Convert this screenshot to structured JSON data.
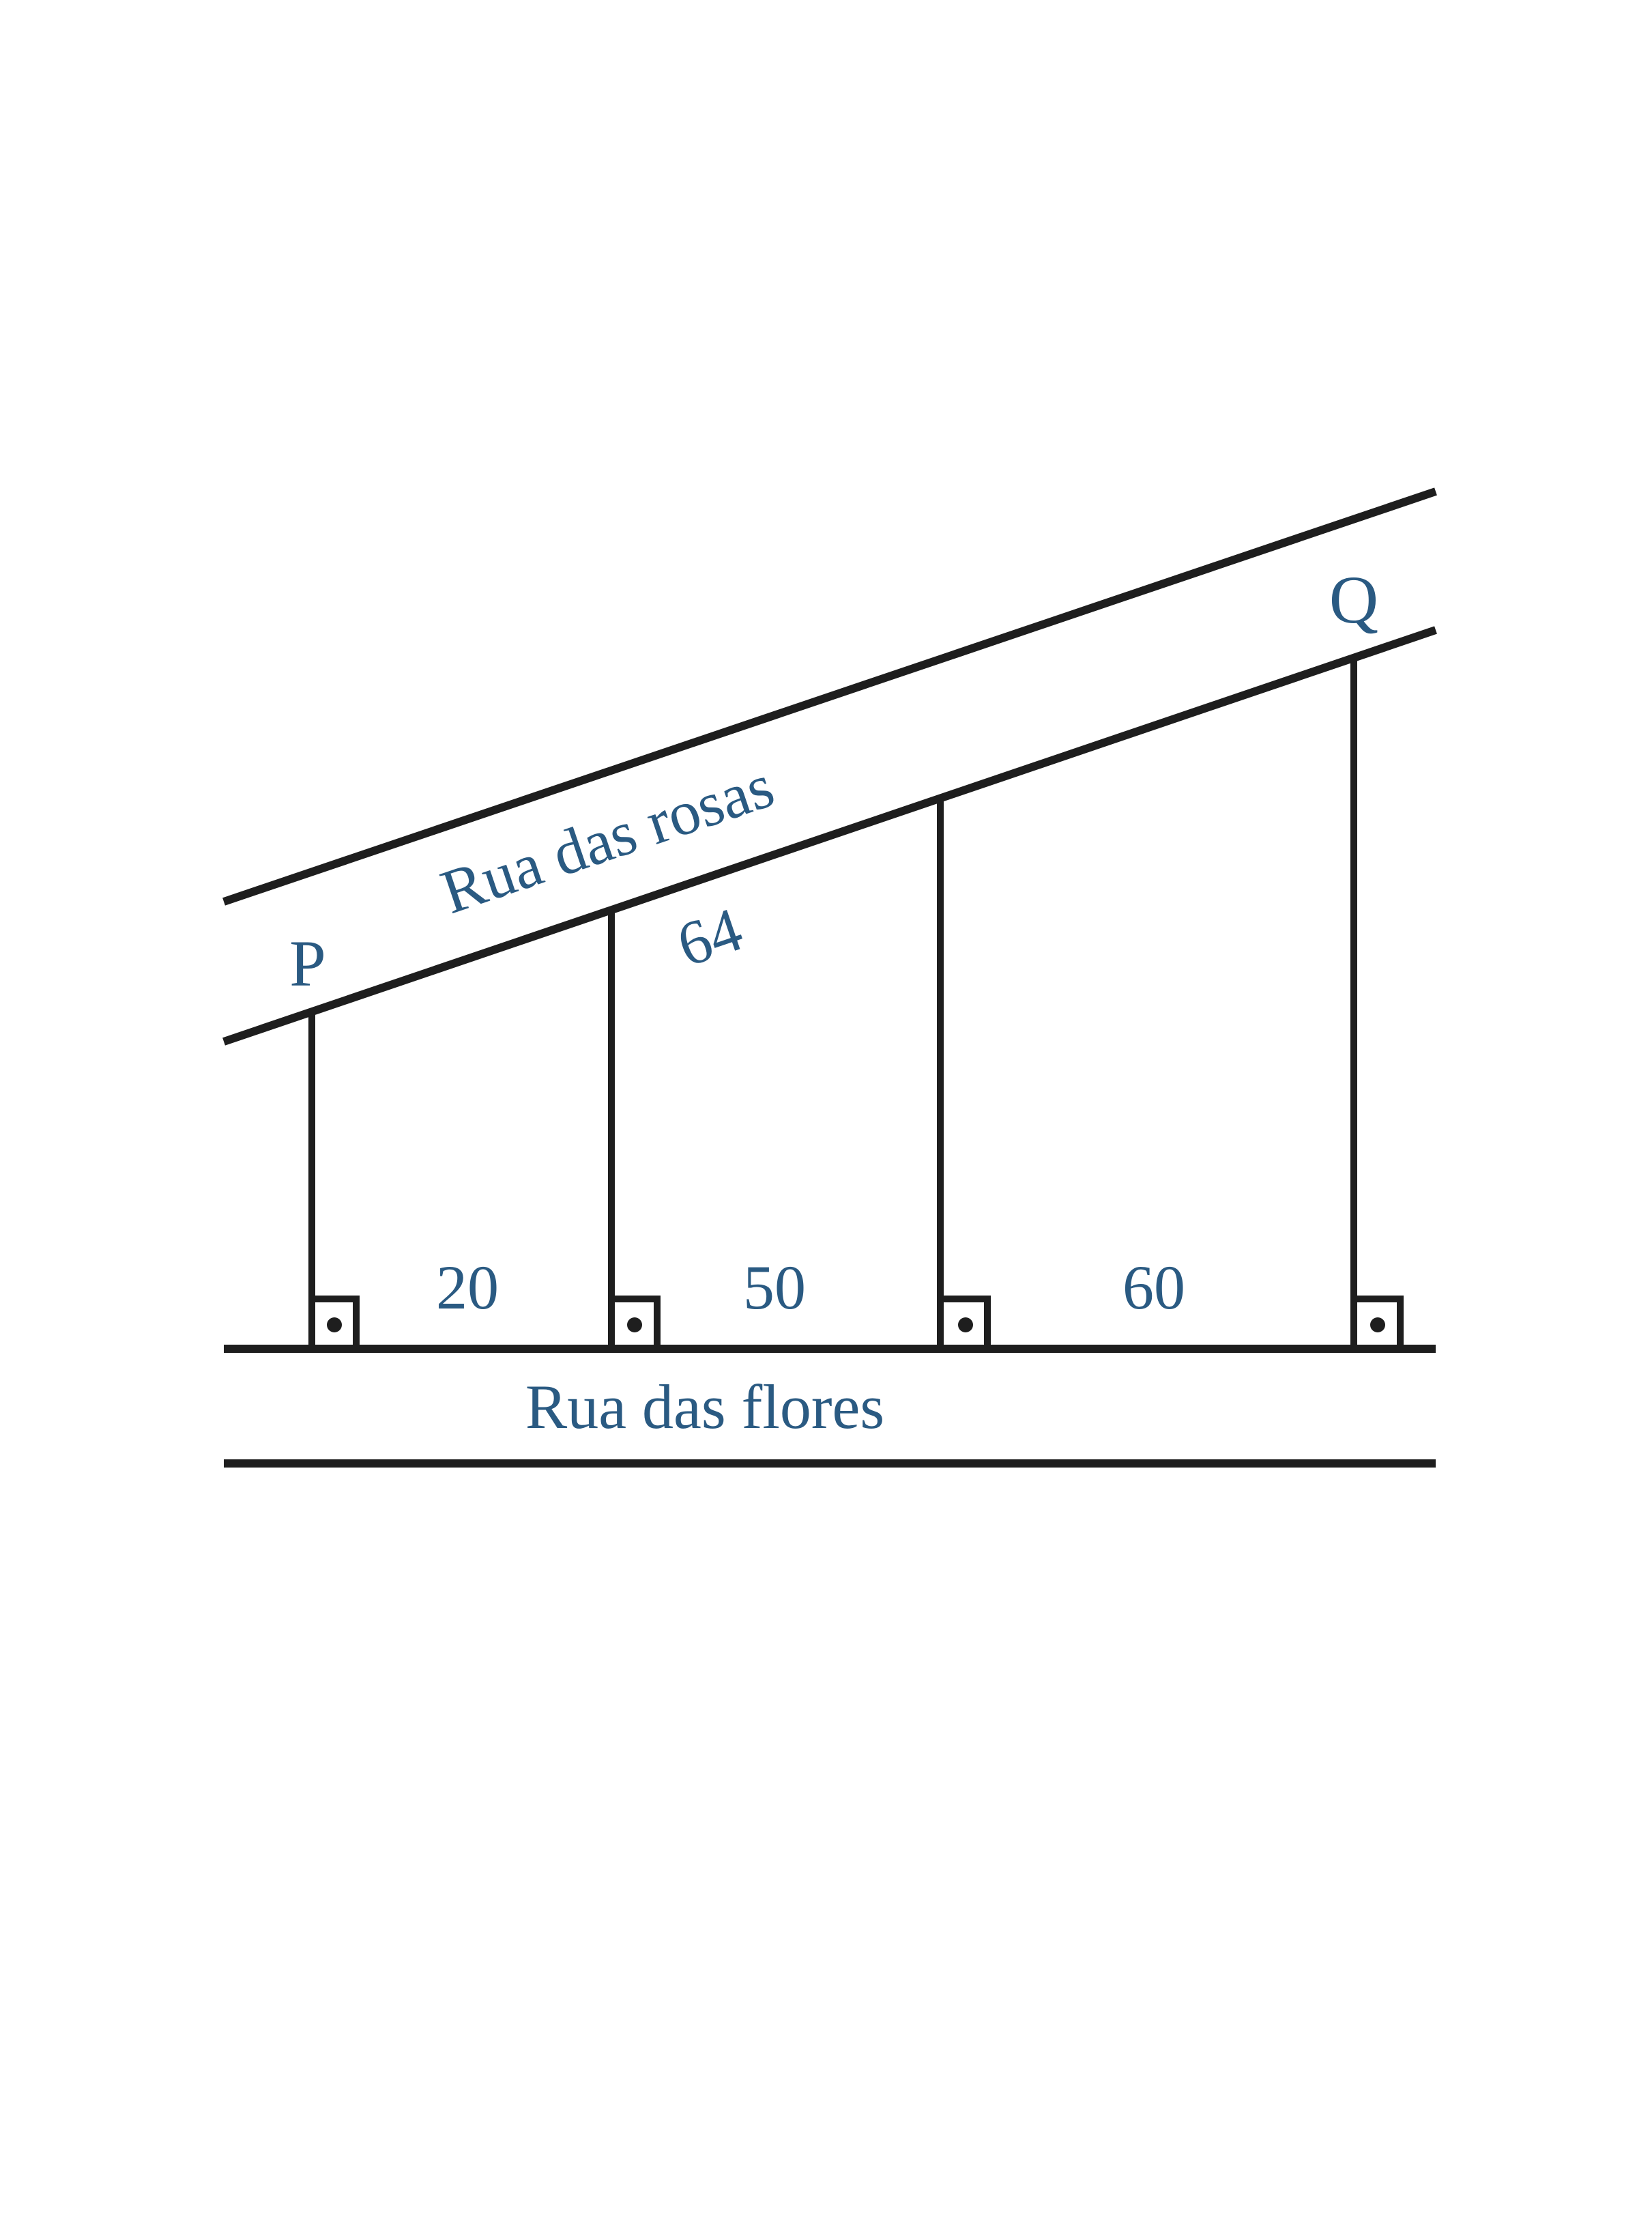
{
  "streets": {
    "upper_name": "Rua das rosas",
    "lower_name": "Rua das flores"
  },
  "points": {
    "p": "P",
    "q": "Q"
  },
  "measurements": {
    "front_segment": "64",
    "bottom_segments": [
      "20",
      "50",
      "60"
    ]
  },
  "colors": {
    "line": "#1e1e1e",
    "label": "#2a5a82",
    "background": "#ffffff"
  },
  "icons": {
    "right_angle": "right-angle-marker"
  }
}
